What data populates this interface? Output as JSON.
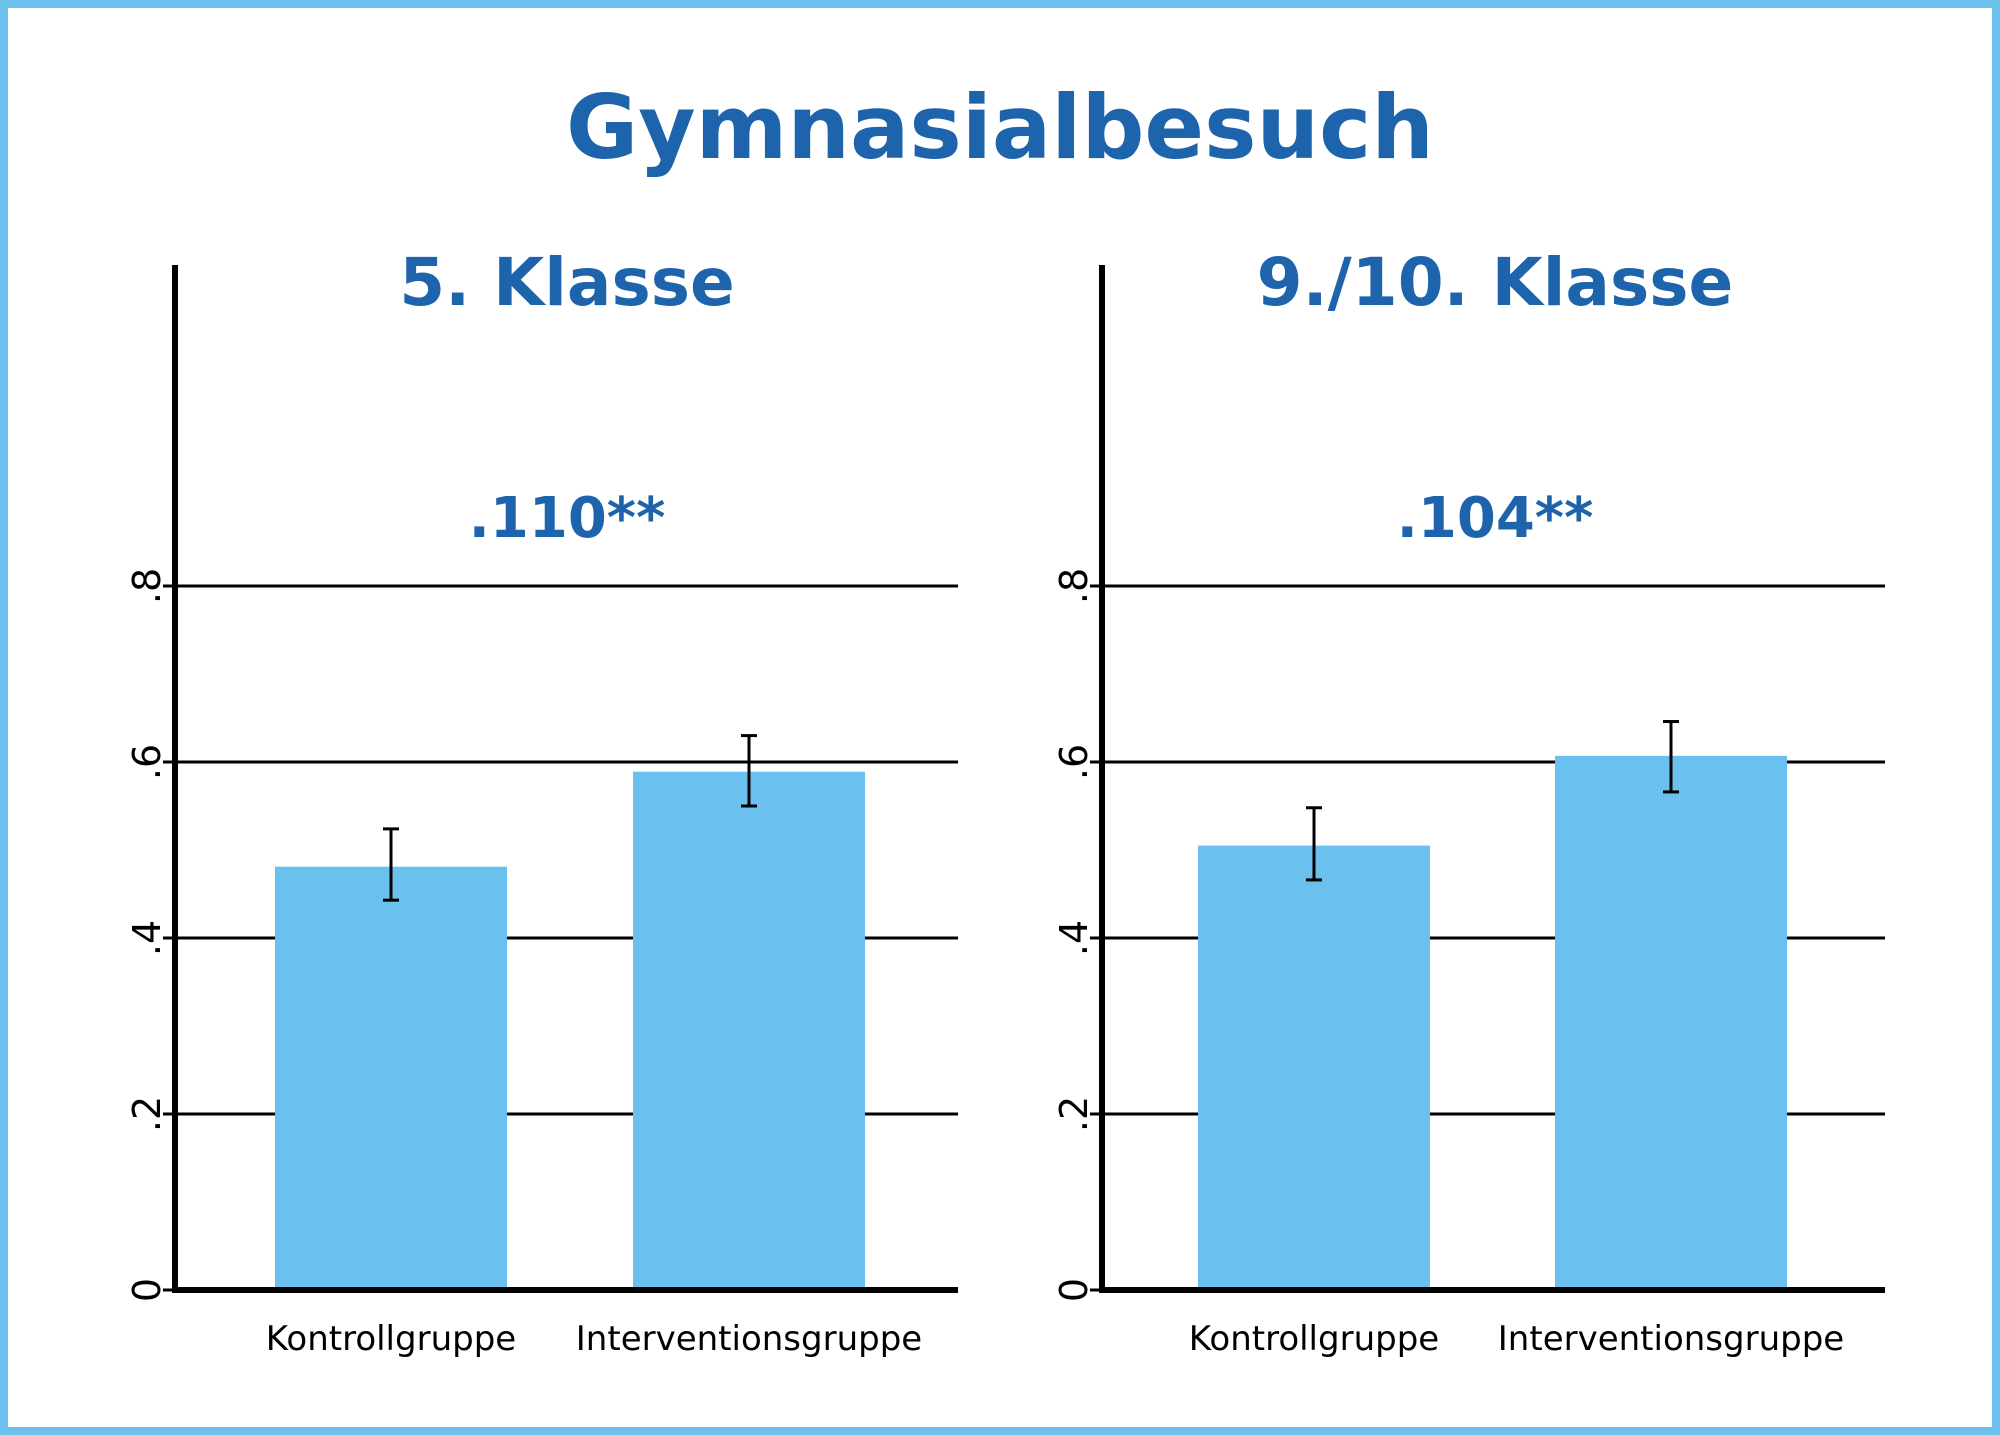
{
  "title": "Gymnasialbesuch",
  "colors": {
    "bar": "#6bc1ee",
    "title": "#1e64ac",
    "frame": "#6cc0ec",
    "axis": "#000000"
  },
  "chart_data": [
    {
      "type": "bar",
      "title": "5. Klasse",
      "annotation": ".110**",
      "categories": [
        "Kontrollgruppe",
        "Interventionsgruppe"
      ],
      "values": [
        0.481,
        0.589
      ],
      "error_low": [
        0.443,
        0.55
      ],
      "error_high": [
        0.524,
        0.63
      ],
      "ylim": [
        0,
        0.9
      ],
      "yticks": [
        0,
        0.2,
        0.4,
        0.6,
        0.8
      ],
      "ytick_labels": [
        "0",
        ".2",
        ".4",
        ".6",
        ".8"
      ],
      "grid": true
    },
    {
      "type": "bar",
      "title": "9./10. Klasse",
      "annotation": ".104**",
      "categories": [
        "Kontrollgruppe",
        "Interventionsgruppe"
      ],
      "values": [
        0.505,
        0.607
      ],
      "error_low": [
        0.466,
        0.566
      ],
      "error_high": [
        0.548,
        0.646
      ],
      "ylim": [
        0,
        0.9
      ],
      "yticks": [
        0,
        0.2,
        0.4,
        0.6,
        0.8
      ],
      "ytick_labels": [
        "0",
        ".2",
        ".4",
        ".6",
        ".8"
      ],
      "grid": true
    }
  ]
}
